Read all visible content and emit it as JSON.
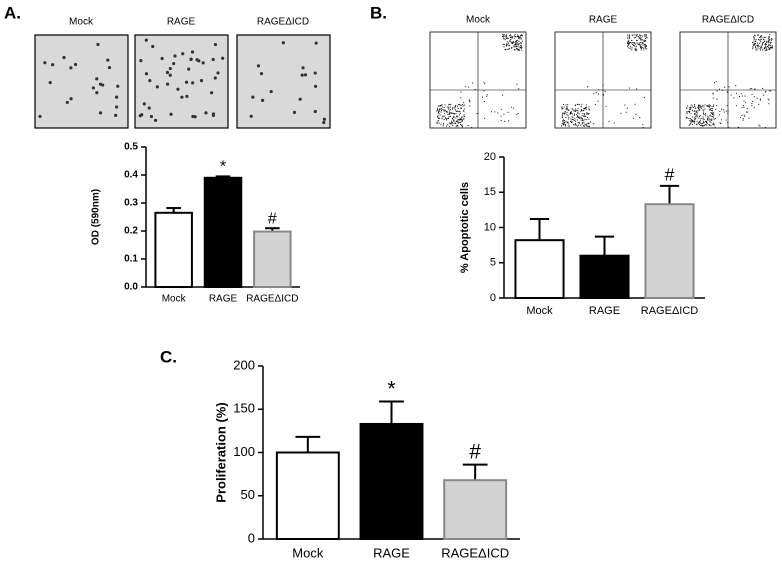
{
  "panels": [
    {
      "label": "A.",
      "images": [
        "Mock",
        "RAGE",
        "RAGEΔICD"
      ]
    },
    {
      "label": "B.",
      "images": [
        "Mock",
        "RAGE",
        "RAGEΔICD"
      ]
    },
    {
      "label": "C."
    }
  ],
  "chart_data": [
    {
      "type": "bar",
      "y_label": "OD (590nm)",
      "categories": [
        "Mock",
        "RAGE",
        "RAGEΔICD"
      ],
      "values": [
        0.265,
        0.39,
        0.198
      ],
      "errors": [
        0.017,
        0.005,
        0.012
      ],
      "annotations": [
        null,
        "*",
        "#"
      ],
      "colors": [
        "#ffffff",
        "#000000",
        "#d3d3d3"
      ],
      "ylim": [
        0,
        0.5
      ],
      "yticks": [
        {
          "value": 0,
          "label": "0.0"
        },
        0.1,
        0.2,
        0.3,
        0.4,
        0.5
      ]
    },
    {
      "type": "bar",
      "y_label": "% Apoptotic cells",
      "categories": [
        "Mock",
        "RAGE",
        "RAGEΔICD"
      ],
      "values": [
        8.2,
        6,
        13.3
      ],
      "errors": [
        3,
        2.7,
        2.6
      ],
      "annotations": [
        null,
        null,
        "#"
      ],
      "colors": [
        "#ffffff",
        "#000000",
        "#d3d3d3"
      ],
      "ylim": [
        0,
        20
      ],
      "yticks": [
        0,
        5,
        10,
        15,
        20
      ]
    },
    {
      "type": "bar",
      "y_label": "Proliferation (%)",
      "categories": [
        "Mock",
        "RAGE",
        "RAGEΔICD"
      ],
      "values": [
        100,
        133,
        68
      ],
      "errors": [
        18,
        26,
        18
      ],
      "annotations": [
        null,
        "*",
        "#"
      ],
      "colors": [
        "#ffffff",
        "#000000",
        "#d3d3d3"
      ],
      "ylim": [
        0,
        200
      ],
      "yticks": [
        0,
        50,
        100,
        150,
        200
      ]
    }
  ]
}
